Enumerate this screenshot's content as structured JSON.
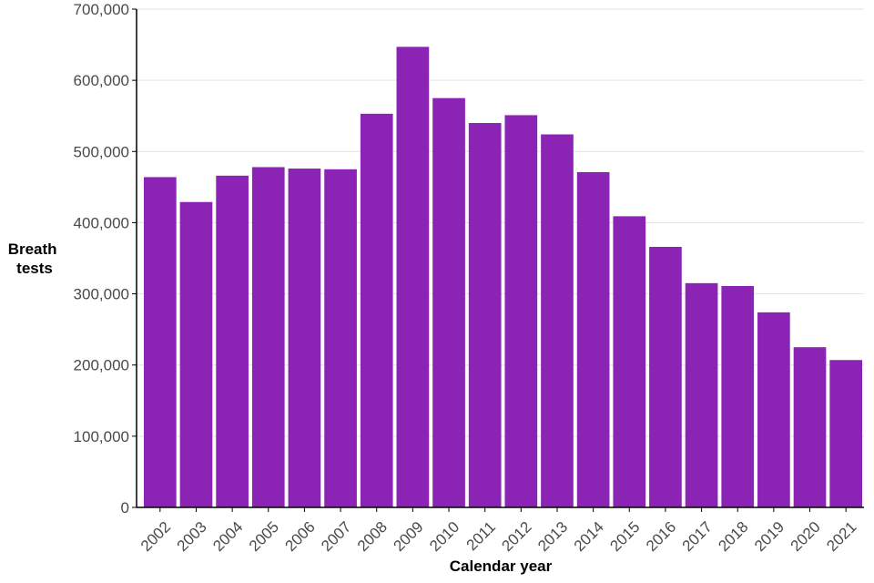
{
  "chart_data": {
    "type": "bar",
    "title": "",
    "xlabel": "Calendar year",
    "ylabel_lines": [
      "Breath",
      "tests"
    ],
    "categories": [
      "2002",
      "2003",
      "2004",
      "2005",
      "2006",
      "2007",
      "2008",
      "2009",
      "2010",
      "2011",
      "2012",
      "2013",
      "2014",
      "2015",
      "2016",
      "2017",
      "2018",
      "2019",
      "2020",
      "2021"
    ],
    "values": [
      464000,
      429000,
      466000,
      478000,
      476000,
      475000,
      553000,
      647000,
      575000,
      540000,
      551000,
      524000,
      471000,
      409000,
      366000,
      315000,
      311000,
      274000,
      225000,
      207000
    ],
    "ylim": [
      0,
      700000
    ],
    "yticks": [
      0,
      100000,
      200000,
      300000,
      400000,
      500000,
      600000,
      700000
    ],
    "ytick_labels": [
      "0",
      "100,000",
      "200,000",
      "300,000",
      "400,000",
      "500,000",
      "600,000",
      "700,000"
    ],
    "grid": true,
    "bar_color": "#8b24b5",
    "gridline_color": "#e2e2e2",
    "axis_color": "#000000"
  }
}
